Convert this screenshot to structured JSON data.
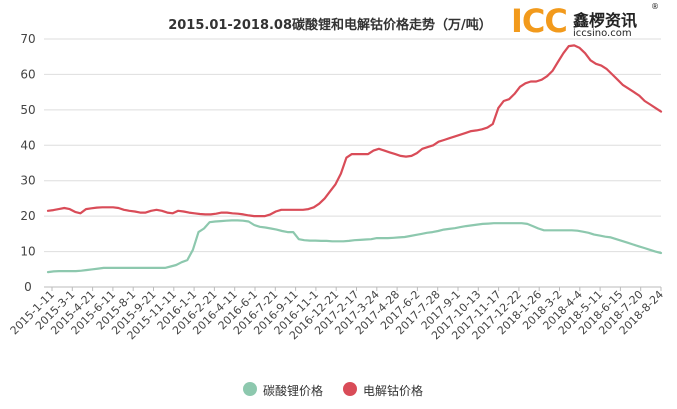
{
  "chart_data": {
    "type": "line",
    "title": "2015.01-2018.08碳酸锂和电解钴价格走势（万/吨）",
    "ylim": [
      0,
      70
    ],
    "yticks": [
      0,
      10,
      20,
      30,
      40,
      50,
      60,
      70
    ],
    "grid": "horizontal",
    "legend_position": "bottom",
    "x_tick_labels": [
      "2015-1-11",
      "2015-3-1",
      "2015-4-21",
      "2015-6-11",
      "2015-8-1",
      "2015-9-21",
      "2015-11-11",
      "2016-1-1",
      "2016-2-21",
      "2016-4-11",
      "2016-6-1",
      "2016-7-21",
      "2016-9-11",
      "2016-11-1",
      "2016-12-21",
      "2017-2-17",
      "2017-3-24",
      "2017-4-28",
      "2017-6-2",
      "2017-7-28",
      "2017-9-1",
      "2017-10-13",
      "2017-11-17",
      "2017-12-22",
      "2018-1-26",
      "2018-3-2",
      "2018-4-4",
      "2018-5-11",
      "2018-6-15",
      "2018-7-20",
      "2018-8-24"
    ],
    "series": [
      {
        "name": "碳酸锂价格",
        "color": "#8dc8ae",
        "values": [
          4.2,
          4.4,
          4.5,
          4.5,
          4.5,
          4.5,
          4.6,
          4.8,
          5.0,
          5.2,
          5.4,
          5.4,
          5.4,
          5.4,
          5.4,
          5.4,
          5.4,
          5.4,
          5.4,
          5.4,
          5.4,
          5.4,
          5.8,
          6.2,
          7.0,
          7.6,
          10.5,
          15.5,
          16.5,
          18.3,
          18.5,
          18.6,
          18.7,
          18.8,
          18.8,
          18.7,
          18.5,
          17.5,
          17.0,
          16.8,
          16.5,
          16.2,
          15.8,
          15.5,
          15.5,
          13.5,
          13.2,
          13.1,
          13.1,
          13.0,
          13.0,
          12.9,
          12.9,
          12.9,
          13.0,
          13.2,
          13.3,
          13.4,
          13.5,
          13.8,
          13.8,
          13.8,
          13.9,
          14.0,
          14.1,
          14.4,
          14.7,
          15.0,
          15.3,
          15.5,
          15.8,
          16.2,
          16.4,
          16.6,
          16.9,
          17.2,
          17.4,
          17.6,
          17.8,
          17.9,
          18.0,
          18.0,
          18.0,
          18.0,
          18.0,
          18.0,
          17.8,
          17.2,
          16.5,
          16.0,
          16.0,
          16.0,
          16.0,
          16.0,
          16.0,
          15.9,
          15.6,
          15.3,
          14.8,
          14.5,
          14.2,
          14.0,
          13.5,
          13.0,
          12.5,
          12.0,
          11.5,
          11.0,
          10.5,
          10.0,
          9.6
        ]
      },
      {
        "name": "电解钴价格",
        "color": "#d94c58",
        "values": [
          21.5,
          21.7,
          22.0,
          22.3,
          22.0,
          21.2,
          20.8,
          22.0,
          22.2,
          22.4,
          22.5,
          22.5,
          22.5,
          22.3,
          21.8,
          21.5,
          21.3,
          21.0,
          21.0,
          21.5,
          21.8,
          21.5,
          21.0,
          20.8,
          21.5,
          21.3,
          21.0,
          20.8,
          20.6,
          20.5,
          20.5,
          20.7,
          21.0,
          21.0,
          20.8,
          20.7,
          20.5,
          20.2,
          20.0,
          20.0,
          20.0,
          20.5,
          21.3,
          21.8,
          21.8,
          21.8,
          21.8,
          21.8,
          22.0,
          22.5,
          23.5,
          25.0,
          27.0,
          29.0,
          32.0,
          36.5,
          37.5,
          37.5,
          37.5,
          37.5,
          38.5,
          39.0,
          38.5,
          38.0,
          37.5,
          37.0,
          36.8,
          37.0,
          37.8,
          39.0,
          39.5,
          40.0,
          41.0,
          41.5,
          42.0,
          42.5,
          43.0,
          43.5,
          44.0,
          44.2,
          44.5,
          45.0,
          46.0,
          50.5,
          52.5,
          53.0,
          54.5,
          56.5,
          57.5,
          58.0,
          58.0,
          58.5,
          59.5,
          61.0,
          63.5,
          66.0,
          68.0,
          68.2,
          67.5,
          66.0,
          64.0,
          63.0,
          62.5,
          61.5,
          60.0,
          58.5,
          57.0,
          56.0,
          55.0,
          54.0,
          52.5,
          51.5,
          50.5,
          49.5
        ]
      }
    ]
  },
  "logo": {
    "brand": "ICC",
    "name_cn": "鑫椤资讯",
    "registered_mark": "®",
    "url": "iccsino.com"
  }
}
